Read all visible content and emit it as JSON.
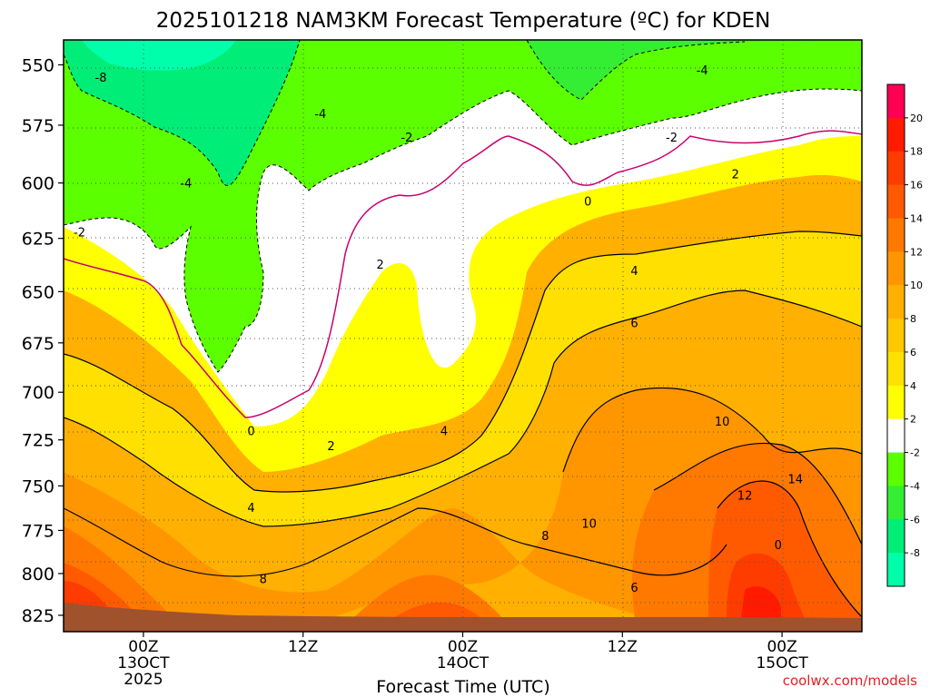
{
  "chart_data": {
    "type": "contour",
    "title": "2025101218 NAM3KM Forecast Temperature (ºC) for KDEN",
    "xlabel": "Forecast Time (UTC)",
    "ylabel": "",
    "credit": "coolwx.com/models",
    "y_ticks": [
      "550",
      "575",
      "600",
      "625",
      "650",
      "675",
      "700",
      "725",
      "750",
      "775",
      "800",
      "825"
    ],
    "y_range": [
      540,
      835
    ],
    "x_range_hours": [
      -6,
      54
    ],
    "x_ticks": [
      {
        "hour": 0,
        "lines": [
          "00Z",
          "13OCT",
          "2025"
        ]
      },
      {
        "hour": 12,
        "lines": [
          "12Z"
        ]
      },
      {
        "hour": 24,
        "lines": [
          "00Z",
          "14OCT"
        ]
      },
      {
        "hour": 36,
        "lines": [
          "12Z"
        ]
      },
      {
        "hour": 48,
        "lines": [
          "00Z",
          "15OCT"
        ]
      }
    ],
    "colorbar": {
      "labels": [
        "20",
        "18",
        "16",
        "14",
        "12",
        "10",
        "8",
        "6",
        "4",
        "2",
        "-2",
        "-4",
        "-6",
        "-8"
      ],
      "colors": [
        "#ff0055",
        "#ff1a00",
        "#ff3c00",
        "#ff5a00",
        "#ff7800",
        "#ff9600",
        "#ffb000",
        "#ffc800",
        "#ffe000",
        "#ffff00",
        "#ffffff",
        "#5cff00",
        "#33ee33",
        "#00ee77",
        "#00ffaa"
      ]
    },
    "contour_labels": [
      {
        "text": "-8",
        "hour": -3.2,
        "p": 555
      },
      {
        "text": "-4",
        "hour": 3.2,
        "p": 600
      },
      {
        "text": "-4",
        "hour": 13.3,
        "p": 570
      },
      {
        "text": "-2",
        "hour": -4.8,
        "p": 622
      },
      {
        "text": "-2",
        "hour": 19.8,
        "p": 580
      },
      {
        "text": "-2",
        "hour": 39.7,
        "p": 580
      },
      {
        "text": "-4",
        "hour": 42,
        "p": 552
      },
      {
        "text": "0",
        "hour": 8.1,
        "p": 720
      },
      {
        "text": "0",
        "hour": 33.4,
        "p": 608
      },
      {
        "text": "2",
        "hour": 17.8,
        "p": 637
      },
      {
        "text": "2",
        "hour": 14.1,
        "p": 728
      },
      {
        "text": "2",
        "hour": 44.5,
        "p": 596
      },
      {
        "text": "4",
        "hour": 8.1,
        "p": 762
      },
      {
        "text": "4",
        "hour": 22.6,
        "p": 720
      },
      {
        "text": "4",
        "hour": 36.9,
        "p": 640
      },
      {
        "text": "6",
        "hour": 36.9,
        "p": 665
      },
      {
        "text": "6",
        "hour": 36.9,
        "p": 808
      },
      {
        "text": "8",
        "hour": 9,
        "p": 803
      },
      {
        "text": "8",
        "hour": 30.2,
        "p": 778
      },
      {
        "text": "10",
        "hour": 43.5,
        "p": 715
      },
      {
        "text": "10",
        "hour": 33.5,
        "p": 771
      },
      {
        "text": "12",
        "hour": 45.2,
        "p": 755
      },
      {
        "text": "14",
        "hour": 49,
        "p": 746
      },
      {
        "text": "0",
        "hour": 47.7,
        "p": 783
      }
    ]
  }
}
